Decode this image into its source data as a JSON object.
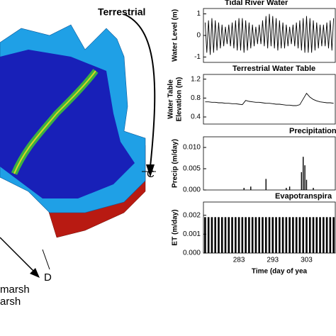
{
  "illustration": {
    "title": "Terrestrial",
    "labels": [
      "C",
      "D"
    ],
    "legend": [
      "marsh",
      "arsh"
    ]
  },
  "chart_data": [
    {
      "type": "line",
      "title": "Tidal River Water",
      "ylabel": [
        "Water Level (m)"
      ],
      "color": "#000000",
      "x": [
        273,
        273.5,
        274,
        274.5,
        275,
        275.5,
        276,
        276.5,
        277,
        277.5,
        278,
        278.5,
        279,
        279.5,
        280,
        280.5,
        281,
        281.5,
        282,
        282.5,
        283,
        283.5,
        284,
        284.5,
        285,
        285.5,
        286,
        286.5,
        287,
        287.5,
        288,
        288.5,
        289,
        289.5,
        290,
        290.5,
        291,
        291.5,
        292,
        292.5,
        293,
        293.5,
        294,
        294.5,
        295,
        295.5,
        296,
        296.5,
        297,
        297.5,
        298,
        298.5,
        299,
        299.5,
        300,
        300.5,
        301,
        301.5,
        302,
        302.5,
        303,
        303.5,
        304,
        304.5,
        305,
        305.5,
        306,
        306.5,
        307,
        307.5,
        308,
        308.5,
        309,
        309.5,
        310,
        310.5,
        311
      ],
      "values": [
        0.6,
        -0.8,
        0.7,
        -0.9,
        0.8,
        -0.8,
        0.7,
        -0.7,
        0.6,
        -0.6,
        0.5,
        -0.5,
        0.4,
        -0.4,
        0.5,
        -0.5,
        0.6,
        -0.6,
        0.7,
        -0.7,
        0.8,
        -0.7,
        0.8,
        -0.8,
        0.7,
        -0.7,
        0.6,
        -0.6,
        0.5,
        -0.5,
        0.4,
        -0.4,
        0.5,
        -0.4,
        0.7,
        -0.5,
        0.9,
        -0.6,
        1.0,
        -0.5,
        0.9,
        -0.6,
        0.8,
        -0.7,
        0.7,
        -0.6,
        0.6,
        -0.6,
        0.5,
        -0.5,
        0.4,
        -0.4,
        0.5,
        -0.5,
        0.6,
        -0.6,
        0.7,
        -0.7,
        0.8,
        -0.8,
        0.9,
        -0.8,
        0.8,
        -0.8,
        0.7,
        -0.7,
        0.6,
        -0.6,
        0.5,
        -0.5,
        0.5,
        -0.5,
        0.6,
        -0.6,
        0.7,
        -0.7,
        0.8
      ],
      "xlim": [
        272.5,
        311.5
      ],
      "ylim": [
        -1.25,
        1.25
      ],
      "yticks": [
        1,
        0,
        -1
      ]
    },
    {
      "type": "line",
      "title": "Terrestrial Water Table",
      "ylabel": [
        "Water Table",
        "Elevation (m)"
      ],
      "color": "#000000",
      "x": [
        273,
        274,
        275,
        276,
        277,
        278,
        279,
        280,
        281,
        282,
        283,
        284,
        285,
        286,
        287,
        288,
        289,
        290,
        291,
        292,
        293,
        294,
        295,
        296,
        297,
        298,
        299,
        300,
        301,
        302,
        303,
        304,
        305,
        306,
        307,
        308,
        309,
        310,
        311
      ],
      "values": [
        0.72,
        0.72,
        0.71,
        0.71,
        0.7,
        0.7,
        0.69,
        0.69,
        0.68,
        0.68,
        0.67,
        0.66,
        0.75,
        0.73,
        0.72,
        0.71,
        0.71,
        0.7,
        0.69,
        0.69,
        0.68,
        0.67,
        0.67,
        0.66,
        0.65,
        0.65,
        0.64,
        0.64,
        0.66,
        0.78,
        0.9,
        0.82,
        0.77,
        0.74,
        0.72,
        0.71,
        0.7,
        0.7,
        0.69
      ],
      "xlim": [
        272.5,
        311.5
      ],
      "ylim": [
        0.25,
        1.3
      ],
      "yticks": [
        0.4,
        0.8,
        1.2
      ]
    },
    {
      "type": "bar",
      "title": "Precipitation",
      "ylabel": [
        "Precip (m/day)"
      ],
      "color": "#000000",
      "x": [
        284.5,
        286.5,
        291,
        297,
        298,
        301.5,
        302,
        302.5,
        303,
        305
      ],
      "values": [
        0.0005,
        0.0008,
        0.0026,
        0.0005,
        0.0008,
        0.0042,
        0.0078,
        0.0058,
        0.0024,
        0.0005
      ],
      "xlim": [
        272.5,
        311.5
      ],
      "ylim": [
        0,
        0.0125
      ],
      "yticks": [
        {
          "value": 0,
          "label": "0.000"
        },
        {
          "value": 0.005,
          "label": "0.005"
        },
        {
          "value": 0.01,
          "label": "0.010"
        }
      ]
    },
    {
      "type": "bar",
      "title": "Evapotranspira",
      "ylabel": [
        "ET (m/day)"
      ],
      "xlabel": "Time (day of yea",
      "color": "#000000",
      "x": [
        273,
        274,
        275,
        276,
        277,
        278,
        279,
        280,
        281,
        282,
        283,
        284,
        285,
        286,
        287,
        288,
        289,
        290,
        291,
        292,
        293,
        294,
        295,
        296,
        297,
        298,
        299,
        300,
        301,
        302,
        303,
        304,
        305,
        306,
        307,
        308,
        309,
        310,
        311
      ],
      "values": [
        0.0019,
        0.0019,
        0.0019,
        0.0019,
        0.0019,
        0.0019,
        0.0019,
        0.0019,
        0.0019,
        0.0019,
        0.0019,
        0.0019,
        0.0019,
        0.0019,
        0.0019,
        0.0019,
        0.0019,
        0.0019,
        0.0019,
        0.0019,
        0.0019,
        0.0019,
        0.0019,
        0.0019,
        0.0019,
        0.0019,
        0.0019,
        0.0019,
        0.0019,
        0.0019,
        0.0019,
        0.0019,
        0.0019,
        0.0019,
        0.0019,
        0.0019,
        0.0019,
        0.0019,
        0.0019
      ],
      "xlim": [
        272.5,
        311.5
      ],
      "ylim": [
        0,
        0.0027
      ],
      "yticks": [
        {
          "value": 0,
          "label": "0.000"
        },
        {
          "value": 0.001,
          "label": "0.001"
        },
        {
          "value": 0.002,
          "label": "0.002"
        }
      ],
      "xticks": [
        283,
        293,
        303
      ]
    }
  ]
}
